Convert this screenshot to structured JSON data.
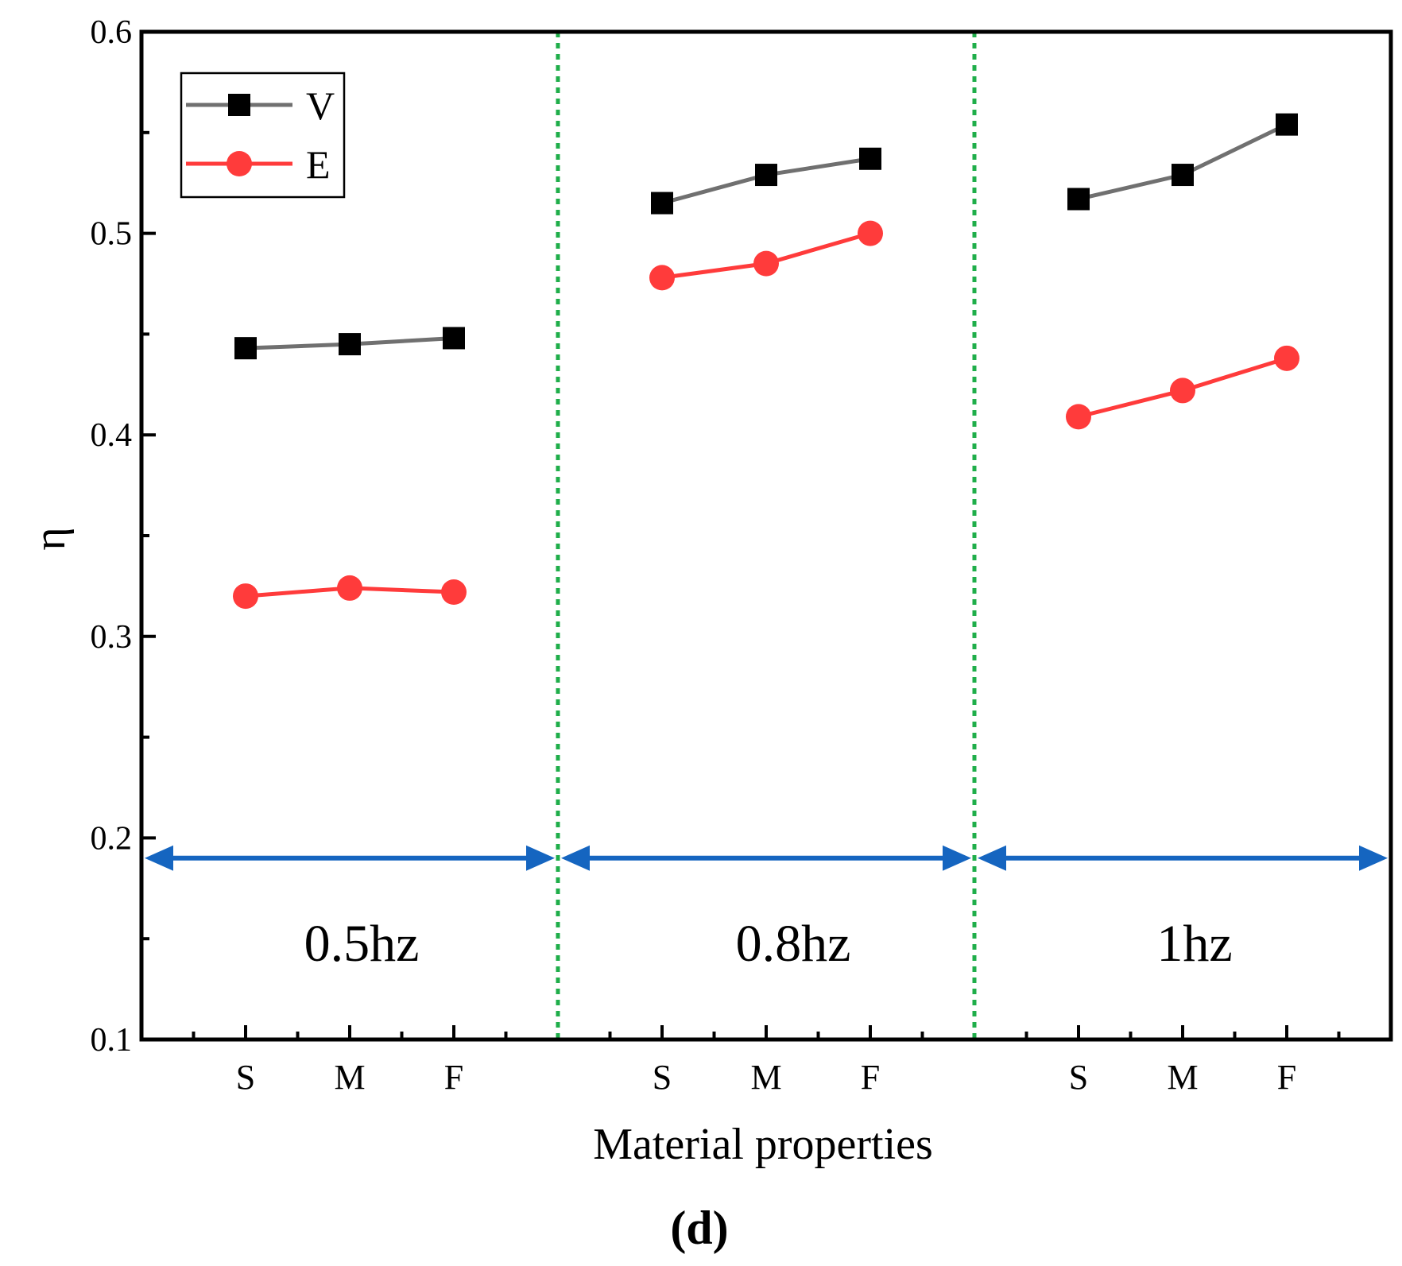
{
  "chart_data": {
    "type": "line",
    "title": "",
    "xlabel": "Material properties",
    "ylabel": "η",
    "ylim": [
      0.1,
      0.6
    ],
    "yticks": [
      "0.1",
      "0.2",
      "0.3",
      "0.4",
      "0.5",
      "0.6"
    ],
    "groups": [
      {
        "label": "0.5hz",
        "categories": [
          "S",
          "M",
          "F"
        ]
      },
      {
        "label": "0.8hz",
        "categories": [
          "S",
          "M",
          "F"
        ]
      },
      {
        "label": "1hz",
        "categories": [
          "S",
          "M",
          "F"
        ]
      }
    ],
    "series": [
      {
        "name": "V",
        "marker": "square",
        "line_color": "#707070",
        "marker_color": "#000000",
        "groups": [
          [
            0.443,
            0.445,
            0.448
          ],
          [
            0.515,
            0.529,
            0.537
          ],
          [
            0.517,
            0.529,
            0.554
          ]
        ]
      },
      {
        "name": "E",
        "marker": "circle",
        "line_color": "#ff3b3b",
        "marker_color": "#ff3b3b",
        "groups": [
          [
            0.32,
            0.324,
            0.322
          ],
          [
            0.478,
            0.485,
            0.5
          ],
          [
            0.409,
            0.422,
            0.438
          ]
        ]
      }
    ],
    "arrow_level": 0.19,
    "legend_position": "top-left",
    "panel_label": "(d)",
    "colors": {
      "divider": "#1fae4a",
      "arrow": "#1565c0",
      "axis": "#000000"
    }
  }
}
